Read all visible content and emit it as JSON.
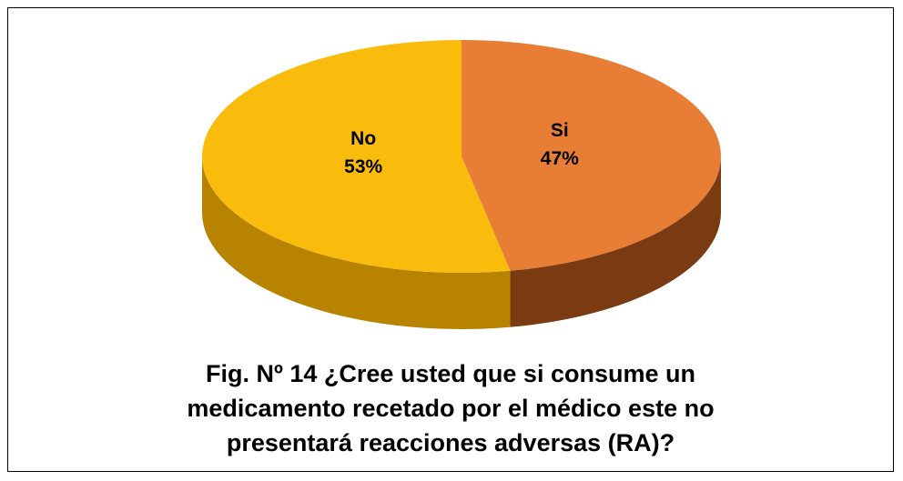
{
  "chart_data": {
    "type": "pie",
    "title": "Fig. Nº 14 ¿Cree usted que si consume un medicamento recetado por el médico este no presentará reacciones adversas (RA)?",
    "categories": [
      "Si",
      "No"
    ],
    "values": [
      47,
      53
    ],
    "value_labels": [
      "47%",
      "53%"
    ],
    "colors": [
      "#e87d35",
      "#f9bc0d"
    ],
    "side_colors": [
      "#7a3a12",
      "#b88300"
    ]
  }
}
